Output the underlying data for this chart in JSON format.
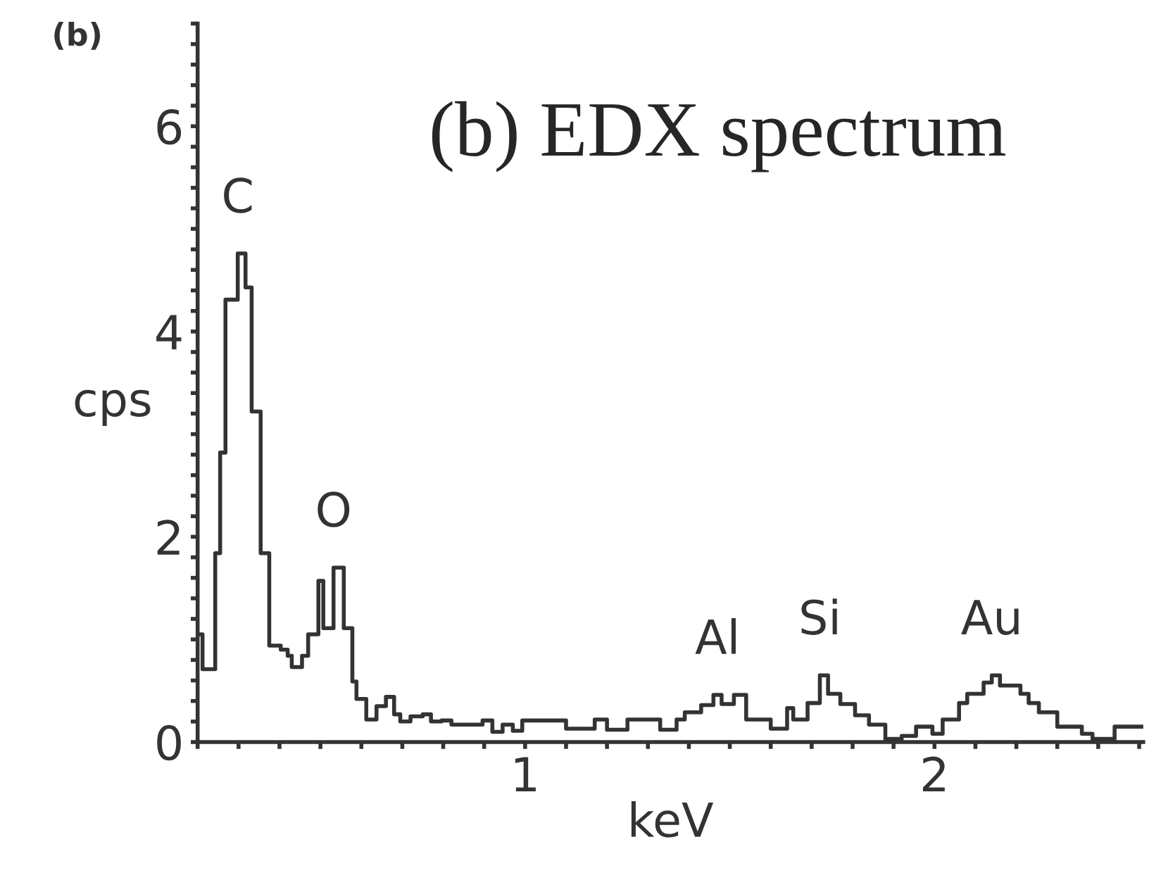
{
  "chart_data": {
    "type": "step",
    "title": "(b) EDX spectrum",
    "xlabel": "keV",
    "ylabel": "cps",
    "x": [
      0.2,
      0.212,
      0.243,
      0.255,
      0.268,
      0.298,
      0.317,
      0.332,
      0.354,
      0.375,
      0.403,
      0.42,
      0.43,
      0.455,
      0.47,
      0.495,
      0.507,
      0.532,
      0.557,
      0.578,
      0.588,
      0.612,
      0.637,
      0.66,
      0.68,
      0.695,
      0.72,
      0.75,
      0.77,
      0.796,
      0.82,
      0.896,
      0.92,
      0.945,
      0.97,
      0.993,
      1.1,
      1.17,
      1.2,
      1.25,
      1.32,
      1.33,
      1.37,
      1.39,
      1.43,
      1.46,
      1.48,
      1.51,
      1.54,
      1.6,
      1.64,
      1.655,
      1.69,
      1.72,
      1.74,
      1.77,
      1.806,
      1.84,
      1.88,
      1.92,
      1.955,
      1.995,
      2.02,
      2.06,
      2.08,
      2.12,
      2.14,
      2.16,
      2.21,
      2.23,
      2.255,
      2.3,
      2.36,
      2.386,
      2.44,
      2.51
    ],
    "series": [
      {
        "color": "#333333",
        "values": [
          1.05,
          0.71,
          1.84,
          2.82,
          4.31,
          4.76,
          4.43,
          3.22,
          1.84,
          0.94,
          0.9,
          0.84,
          0.73,
          0.84,
          1.05,
          1.57,
          1.11,
          1.7,
          1.11,
          0.59,
          0.42,
          0.22,
          0.35,
          0.44,
          0.27,
          0.2,
          0.25,
          0.27,
          0.2,
          0.21,
          0.17,
          0.21,
          0.1,
          0.17,
          0.11,
          0.21,
          0.13,
          0.22,
          0.12,
          0.22,
          0.22,
          0.12,
          0.22,
          0.29,
          0.36,
          0.46,
          0.37,
          0.46,
          0.22,
          0.13,
          0.33,
          0.22,
          0.38,
          0.65,
          0.47,
          0.37,
          0.26,
          0.17,
          0.03,
          0.06,
          0.15,
          0.08,
          0.22,
          0.38,
          0.47,
          0.58,
          0.65,
          0.55,
          0.47,
          0.38,
          0.29,
          0.15,
          0.08,
          0.03,
          0.15,
          0.15
        ]
      }
    ],
    "xlim": [
      0.2,
      2.51
    ],
    "ylim": [
      0,
      7
    ],
    "xticks": [
      {
        "value": 0.2,
        "label": null
      },
      {
        "value": 0.3,
        "label": null
      },
      {
        "value": 0.4,
        "label": null
      },
      {
        "value": 0.5,
        "label": null
      },
      {
        "value": 0.6,
        "label": null
      },
      {
        "value": 0.7,
        "label": null
      },
      {
        "value": 0.8,
        "label": null
      },
      {
        "value": 0.9,
        "label": null
      },
      1,
      {
        "value": 1.1,
        "label": null
      },
      {
        "value": 1.2,
        "label": null
      },
      {
        "value": 1.3,
        "label": null
      },
      {
        "value": 1.4,
        "label": null
      },
      {
        "value": 1.5,
        "label": null
      },
      {
        "value": 1.6,
        "label": null
      },
      {
        "value": 1.7,
        "label": null
      },
      {
        "value": 1.8,
        "label": null
      },
      {
        "value": 1.9,
        "label": null
      },
      2,
      {
        "value": 2.1,
        "label": null
      },
      {
        "value": 2.2,
        "label": null
      },
      {
        "value": 2.3,
        "label": null
      },
      {
        "value": 2.4,
        "label": null
      },
      {
        "value": 2.5,
        "label": null
      }
    ],
    "yticks": [
      0,
      {
        "value": 0.2,
        "label": null
      },
      {
        "value": 0.4,
        "label": null
      },
      {
        "value": 0.6,
        "label": null
      },
      {
        "value": 0.8,
        "label": null
      },
      {
        "value": 1,
        "label": null
      },
      {
        "value": 1.2,
        "label": null
      },
      {
        "value": 1.4,
        "label": null
      },
      {
        "value": 1.6,
        "label": null
      },
      {
        "value": 1.8,
        "label": null
      },
      2,
      {
        "value": 2.2,
        "label": null
      },
      {
        "value": 2.4,
        "label": null
      },
      {
        "value": 2.6,
        "label": null
      },
      {
        "value": 2.8,
        "label": null
      },
      {
        "value": 3,
        "label": null
      },
      {
        "value": 3.2,
        "label": null
      },
      {
        "value": 3.4,
        "label": null
      },
      {
        "value": 3.6,
        "label": null
      },
      {
        "value": 3.8,
        "label": null
      },
      4,
      {
        "value": 4.2,
        "label": null
      },
      {
        "value": 4.4,
        "label": null
      },
      {
        "value": 4.6,
        "label": null
      },
      {
        "value": 4.8,
        "label": null
      },
      {
        "value": 5,
        "label": null
      },
      {
        "value": 5.2,
        "label": null
      },
      {
        "value": 5.4,
        "label": null
      },
      {
        "value": 5.6,
        "label": null
      },
      {
        "value": 5.8,
        "label": null
      },
      6,
      {
        "value": 6.2,
        "label": null
      },
      {
        "value": 6.4,
        "label": null
      },
      {
        "value": 6.6,
        "label": null
      },
      {
        "value": 6.8,
        "label": null
      },
      {
        "value": 7,
        "label": null
      }
    ],
    "grid": false,
    "legend": false,
    "annotations": [
      "(b)",
      {
        "text": "C",
        "x": 0.298,
        "y": 4.76
      },
      {
        "text": "O",
        "x": 0.532,
        "y": 1.7
      },
      {
        "text": "Al",
        "x": 1.47,
        "y": 0.46
      },
      {
        "text": "Si",
        "x": 1.72,
        "y": 0.65
      },
      {
        "text": "Au",
        "x": 2.14,
        "y": 0.65
      }
    ]
  }
}
